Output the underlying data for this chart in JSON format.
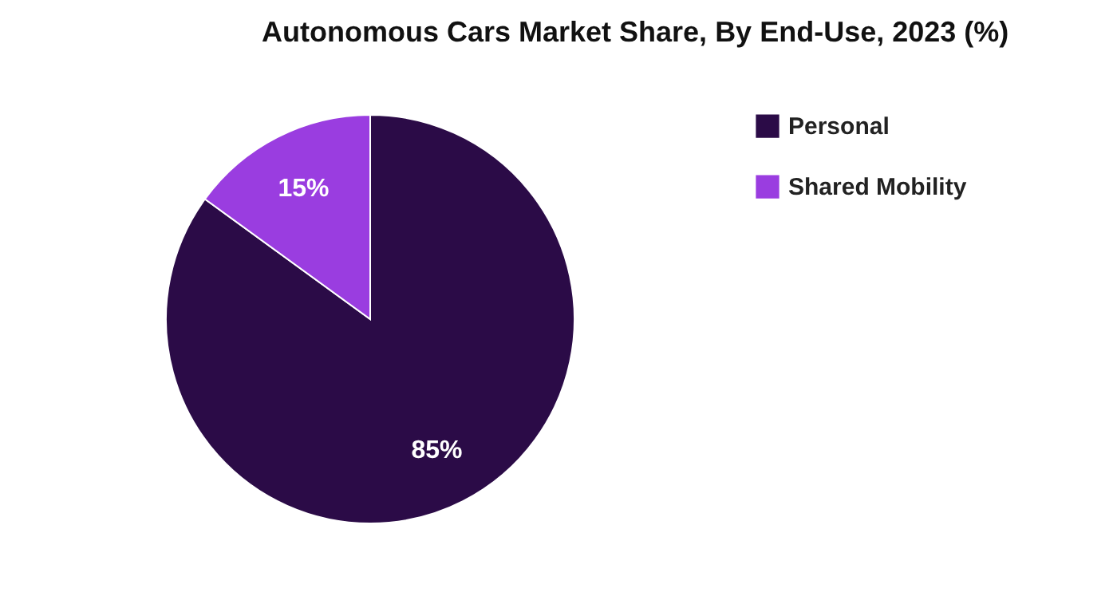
{
  "chart_data": {
    "type": "pie",
    "title": "Autonomous Cars Market Share, By End-Use, 2023 (%)",
    "categories": [
      "Personal",
      "Shared Mobility"
    ],
    "values": [
      85,
      15
    ],
    "colors": [
      "#2b0b47",
      "#9a3de0"
    ],
    "value_labels": [
      "85%",
      "15%"
    ],
    "legend": "right"
  }
}
